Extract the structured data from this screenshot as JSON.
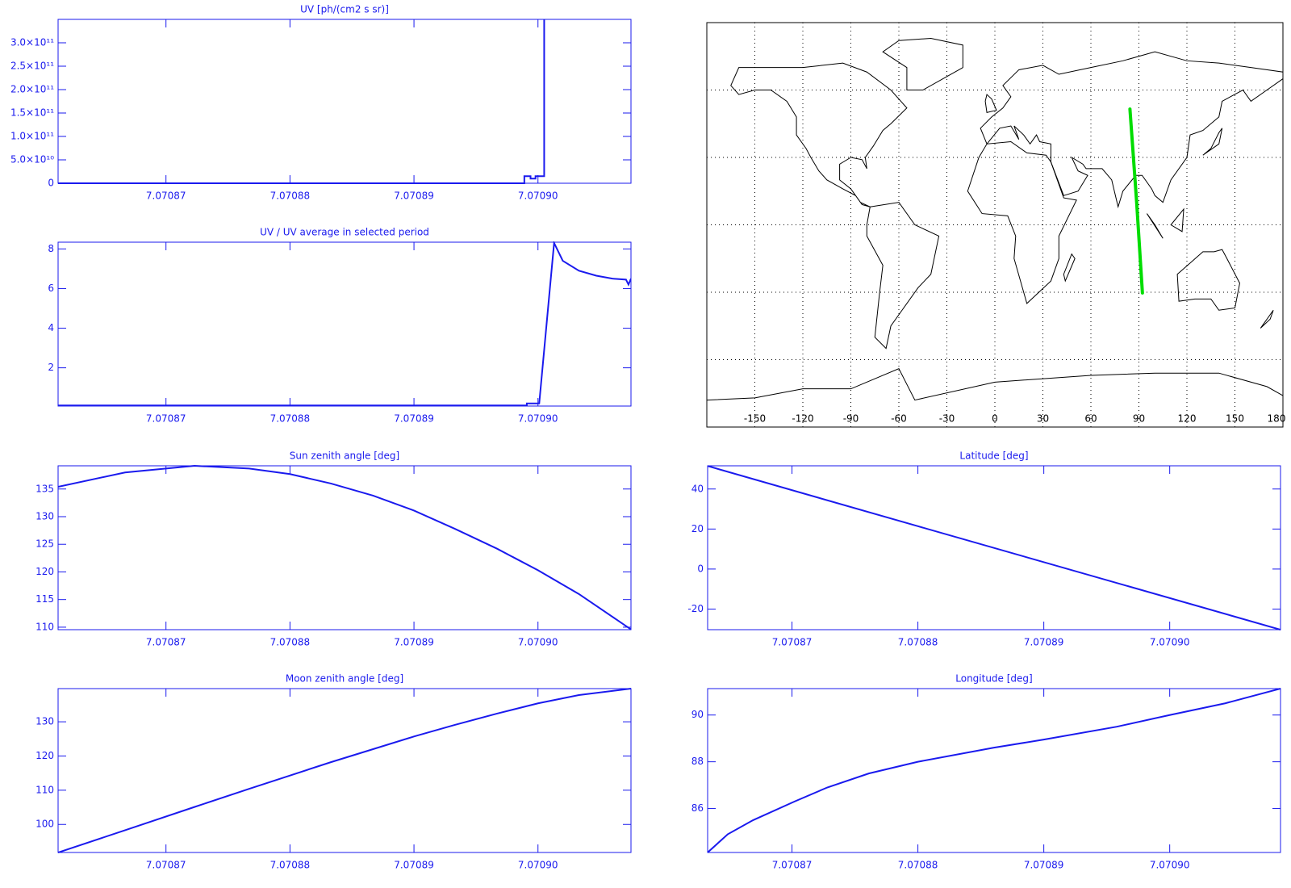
{
  "chart_data": [
    {
      "type": "line",
      "title": "UV [ph/(cm2 s sr)]",
      "color": "#1a1aee",
      "x": [
        7.0708613,
        7.0708989,
        7.0708989,
        7.0708994,
        7.0708994,
        7.0708998,
        7.0708998,
        7.0709005,
        7.0709005
      ],
      "values": [
        0,
        0,
        15000000000,
        15000000000,
        10000000000,
        10000000000,
        15000000000,
        15000000000,
        350000000000
      ],
      "xlim": [
        7.0708613,
        7.0709075
      ],
      "ylim": [
        0,
        350000000000
      ],
      "xticks": [
        7.07087,
        7.07088,
        7.07089,
        {
          "value": 7.0709,
          "label": "7.07090"
        }
      ],
      "yticks": [
        0,
        {
          "value": 50000000000,
          "label": "5.0×10¹⁰"
        },
        {
          "value": 100000000000,
          "label": "1.0×10¹¹"
        },
        {
          "value": 150000000000,
          "label": "1.5×10¹¹"
        },
        {
          "value": 200000000000,
          "label": "2.0×10¹¹"
        },
        {
          "value": 250000000000,
          "label": "2.5×10¹¹"
        },
        {
          "value": 300000000000,
          "label": "3.0×10¹¹"
        }
      ]
    },
    {
      "type": "line",
      "title": "UV / UV average in selected period",
      "color": "#1a1aee",
      "x": [
        7.0708613,
        7.0708991,
        7.0708991,
        7.0709001,
        7.0709013,
        7.070902,
        7.0709033,
        7.0709047,
        7.070906,
        7.0709071,
        7.0709073,
        7.0709075
      ],
      "values": [
        0.1,
        0.1,
        0.2,
        0.2,
        8.3,
        7.4,
        6.9,
        6.65,
        6.5,
        6.45,
        6.2,
        6.5
      ],
      "xlim": [
        7.0708613,
        7.0709075
      ],
      "ylim": [
        0.07,
        8.34
      ],
      "xticks": [
        7.07087,
        7.07088,
        7.07089,
        {
          "value": 7.0709,
          "label": "7.07090"
        }
      ],
      "yticks": [
        2,
        4,
        6,
        8
      ]
    },
    {
      "type": "map",
      "color": "#00dd00",
      "axis_color": "#000000",
      "x": [
        84.4,
        88.6,
        92.2
      ],
      "values": [
        51.5,
        10,
        -30.3
      ],
      "xlim": [
        -180,
        180
      ],
      "ylim": [
        -90,
        90
      ],
      "xticks": [
        -150,
        -120,
        -90,
        -60,
        -30,
        0,
        30,
        60,
        90,
        120,
        150,
        180
      ],
      "ygrid": [
        -60,
        -30,
        0,
        30,
        60
      ]
    },
    {
      "type": "line",
      "title": "Sun zenith angle [deg]",
      "color": "#1a1aee",
      "x": [
        7.0708613,
        7.0708667,
        7.0708723,
        7.0708767,
        7.07088,
        7.0708833,
        7.0708867,
        7.07089,
        7.0708933,
        7.0708967,
        7.0709,
        7.0709033,
        7.0709075
      ],
      "values": [
        135.4,
        138,
        139.2,
        138.7,
        137.7,
        136,
        133.8,
        131.1,
        127.8,
        124.2,
        120.3,
        116,
        109.6
      ],
      "xlim": [
        7.0708613,
        7.0709075
      ],
      "ylim": [
        109.55,
        139.2
      ],
      "xticks": [
        7.07087,
        7.07088,
        7.07089,
        {
          "value": 7.0709,
          "label": "7.07090"
        }
      ],
      "yticks": [
        110,
        115,
        120,
        125,
        130,
        135
      ]
    },
    {
      "type": "line",
      "title": "Latitude [deg]",
      "color": "#1a1aee",
      "x": [
        7.0708633,
        7.07088,
        7.0709088
      ],
      "values": [
        51.5,
        21.4,
        -30.3
      ],
      "xlim": [
        7.0708633,
        7.0709088
      ],
      "ylim": [
        -30.3,
        51.6
      ],
      "xticks": [
        7.07087,
        7.07088,
        7.07089,
        {
          "value": 7.0709,
          "label": "7.07090"
        }
      ],
      "yticks": [
        -20,
        0,
        20,
        40
      ]
    },
    {
      "type": "line",
      "title": "Moon zenith angle [deg]",
      "color": "#1a1aee",
      "x": [
        7.0708613,
        7.0708667,
        7.0708723,
        7.0708767,
        7.07088,
        7.0708833,
        7.0708867,
        7.07089,
        7.0708933,
        7.0708967,
        7.0709,
        7.0709033,
        7.0709075
      ],
      "values": [
        91.8,
        98.3,
        105.1,
        110.4,
        114.3,
        118.2,
        122,
        125.7,
        129.1,
        132.4,
        135.4,
        137.8,
        139.7
      ],
      "xlim": [
        7.0708613,
        7.0709075
      ],
      "ylim": [
        91.8,
        139.7
      ],
      "xticks": [
        7.07087,
        7.07088,
        7.07089,
        {
          "value": 7.0709,
          "label": "7.07090"
        }
      ],
      "yticks": [
        100,
        110,
        120,
        130
      ]
    },
    {
      "type": "line",
      "title": "Longitude [deg]",
      "color": "#1a1aee",
      "x": [
        7.0708633,
        7.0708649,
        7.0708669,
        7.0708702,
        7.0708728,
        7.0708761,
        7.07088,
        7.070886,
        7.07089,
        7.0708958,
        7.0709,
        7.0709044,
        7.0709088
      ],
      "values": [
        84.12,
        84.9,
        85.5,
        86.3,
        86.9,
        87.5,
        88,
        88.6,
        88.95,
        89.5,
        90,
        90.5,
        91.13
      ],
      "xlim": [
        7.0708633,
        7.0709088
      ],
      "ylim": [
        84.12,
        91.13
      ],
      "xticks": [
        7.07087,
        7.07088,
        7.07089,
        {
          "value": 7.0709,
          "label": "7.07090"
        }
      ],
      "yticks": [
        86,
        88,
        90
      ]
    }
  ]
}
